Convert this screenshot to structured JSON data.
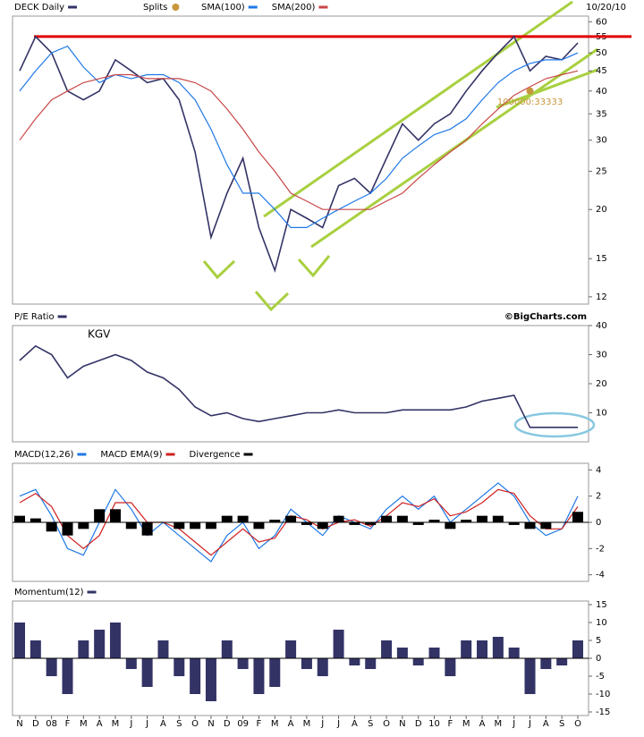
{
  "chart_data": [
    {
      "type": "line",
      "log_scale": true,
      "date": "10/20/10",
      "ylim": [
        11.5,
        62
      ],
      "yticks": [
        12,
        15,
        20,
        25,
        30,
        35,
        40,
        45,
        50,
        55,
        60
      ],
      "series": [
        {
          "name": "DECK Daily",
          "color": "#333366",
          "values": [
            45,
            55,
            50,
            40,
            38,
            40,
            48,
            45,
            42,
            43,
            38,
            28,
            17,
            22,
            27,
            18,
            14,
            20,
            19,
            18,
            23,
            24,
            22,
            27,
            33,
            30,
            33,
            35,
            40,
            45,
            50,
            55,
            45,
            49,
            48,
            53
          ]
        },
        {
          "name": "SMA(100)",
          "color": "#1e78e6",
          "values": [
            40,
            45,
            50,
            52,
            46,
            42,
            44,
            43,
            44,
            44,
            42,
            38,
            32,
            26,
            22,
            22,
            20,
            18,
            18,
            19,
            20,
            21,
            22,
            24,
            27,
            29,
            31,
            32,
            34,
            38,
            42,
            45,
            47,
            48,
            48,
            50
          ]
        },
        {
          "name": "SMA(200)",
          "color": "#c84646",
          "values": [
            30,
            34,
            38,
            40,
            42,
            43,
            44,
            44,
            43,
            43,
            43,
            42,
            40,
            36,
            32,
            28,
            25,
            22,
            21,
            20,
            20,
            20,
            20,
            21,
            22,
            24,
            26,
            28,
            30,
            33,
            36,
            39,
            41,
            43,
            44,
            45
          ]
        }
      ],
      "splits": {
        "name": "Splits",
        "color": "#c8963c",
        "label": "100000:33333",
        "index": 32,
        "value": 40
      },
      "hline": {
        "value": 55,
        "color": "#e00000"
      }
    },
    {
      "type": "line",
      "annotation": "KGV",
      "credit": "©BigCharts.com",
      "ylim": [
        0,
        40
      ],
      "yticks": [
        10,
        20,
        30,
        40
      ],
      "series": [
        {
          "name": "P/E Ratio",
          "color": "#333366",
          "values": [
            28,
            33,
            30,
            22,
            26,
            28,
            30,
            28,
            24,
            22,
            18,
            12,
            9,
            10,
            8,
            7,
            8,
            9,
            10,
            10,
            11,
            10,
            10,
            10,
            11,
            11,
            11,
            11,
            12,
            14,
            15,
            16,
            5,
            5,
            5,
            5
          ]
        }
      ]
    },
    {
      "type": "line",
      "ylim": [
        -4.5,
        4.5
      ],
      "yticks": [
        -4,
        -2,
        0,
        2,
        4
      ],
      "series": [
        {
          "name": "MACD(12,26)",
          "color": "#1e78e6",
          "values": [
            2,
            2.5,
            0.5,
            -2,
            -2.5,
            0,
            2.5,
            1,
            -1,
            0,
            -1,
            -2,
            -3,
            -1,
            0,
            -2,
            -1,
            1,
            0,
            -1,
            0.5,
            0,
            -0.5,
            1,
            2,
            1,
            2,
            0,
            1,
            2,
            3,
            2,
            0,
            -1,
            -0.5,
            2
          ]
        },
        {
          "name": "MACD EMA(9)",
          "color": "#d02020",
          "values": [
            1.5,
            2.2,
            1.2,
            -1,
            -2,
            -1,
            1.5,
            1.5,
            0,
            0,
            -0.5,
            -1.5,
            -2.5,
            -1.5,
            -0.5,
            -1.5,
            -1.2,
            0.5,
            0.2,
            -0.5,
            0,
            0.2,
            -0.3,
            0.5,
            1.5,
            1.2,
            1.8,
            0.5,
            0.8,
            1.5,
            2.5,
            2.2,
            0.5,
            -0.5,
            -0.5,
            1.2
          ]
        },
        {
          "name": "Divergence",
          "color": "#000000",
          "type": "bar",
          "values": [
            0.5,
            0.3,
            -0.7,
            -1,
            -0.5,
            1,
            1,
            -0.5,
            -1,
            0,
            -0.5,
            -0.5,
            -0.5,
            0.5,
            0.5,
            -0.5,
            0.2,
            0.5,
            -0.2,
            -0.5,
            0.5,
            -0.2,
            -0.2,
            0.5,
            0.5,
            -0.2,
            0.2,
            -0.5,
            0.2,
            0.5,
            0.5,
            -0.2,
            -0.5,
            -0.5,
            0,
            0.8
          ]
        }
      ]
    },
    {
      "type": "bar",
      "ylim": [
        -16,
        16
      ],
      "yticks": [
        -15,
        -10,
        -5,
        0,
        5,
        10,
        15
      ],
      "categories": [
        "N",
        "D",
        "08",
        "F",
        "M",
        "A",
        "M",
        "J",
        "J",
        "A",
        "S",
        "O",
        "N",
        "D",
        "09",
        "F",
        "M",
        "A",
        "M",
        "J",
        "J",
        "A",
        "S",
        "O",
        "N",
        "D",
        "10",
        "F",
        "M",
        "A",
        "M",
        "J",
        "J",
        "A",
        "S",
        "O"
      ],
      "series": [
        {
          "name": "Momentum(12)",
          "color": "#333366",
          "values": [
            10,
            5,
            -5,
            -10,
            5,
            8,
            10,
            -3,
            -8,
            5,
            -5,
            -10,
            -12,
            5,
            -3,
            -10,
            -8,
            5,
            -3,
            -5,
            8,
            -2,
            -3,
            5,
            3,
            -2,
            3,
            -5,
            5,
            5,
            6,
            3,
            -10,
            -3,
            -2,
            5
          ]
        }
      ]
    }
  ]
}
